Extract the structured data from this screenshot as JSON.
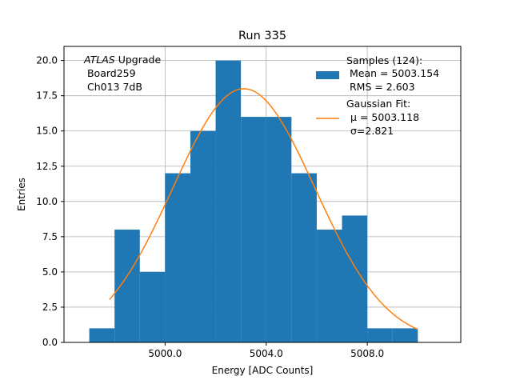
{
  "chart_data": {
    "type": "bar",
    "title": "Run 335",
    "xlabel": "Energy [ADC Counts]",
    "ylabel": "Entries",
    "xlim": [
      4996.0,
      5011.7
    ],
    "ylim": [
      0,
      21.0
    ],
    "grid": true,
    "x_ticks": [
      5000.0,
      5004.0,
      5008.0
    ],
    "x_tick_labels": [
      "5000.0",
      "5004.0",
      "5008.0"
    ],
    "y_ticks": [
      0.0,
      2.5,
      5.0,
      7.5,
      10.0,
      12.5,
      15.0,
      17.5,
      20.0
    ],
    "y_tick_labels": [
      "0.0",
      "2.5",
      "5.0",
      "7.5",
      "10.0",
      "12.5",
      "15.0",
      "17.5",
      "20.0"
    ],
    "bins": [
      {
        "x0": 4997,
        "x1": 4998,
        "value": 1
      },
      {
        "x0": 4998,
        "x1": 4999,
        "value": 8
      },
      {
        "x0": 4999,
        "x1": 5000,
        "value": 5
      },
      {
        "x0": 5000,
        "x1": 5001,
        "value": 12
      },
      {
        "x0": 5001,
        "x1": 5002,
        "value": 15
      },
      {
        "x0": 5002,
        "x1": 5003,
        "value": 20
      },
      {
        "x0": 5003,
        "x1": 5004,
        "value": 16
      },
      {
        "x0": 5004,
        "x1": 5005,
        "value": 16
      },
      {
        "x0": 5005,
        "x1": 5006,
        "value": 12
      },
      {
        "x0": 5006,
        "x1": 5007,
        "value": 8
      },
      {
        "x0": 5007,
        "x1": 5008,
        "value": 9
      },
      {
        "x0": 5008,
        "x1": 5009,
        "value": 1
      },
      {
        "x0": 5009,
        "x1": 5010,
        "value": 1
      }
    ],
    "fit": {
      "type": "gaussian",
      "mu": 5003.118,
      "sigma": 2.821,
      "amplitude": 18.0,
      "x_range": [
        4997.8,
        5010.0
      ]
    },
    "colors": {
      "bars": "#1f77b4",
      "fit": "#ff7f0e",
      "grid": "#b0b0b0"
    },
    "annotation": {
      "line1_italic": "ATLAS",
      "line1_rest": " Upgrade",
      "line2": " Board259",
      "line3": " Ch013 7dB"
    },
    "legend": {
      "position": "upper right",
      "samples_lines": [
        "Samples (124):",
        " Mean = 5003.154",
        " RMS = 2.603"
      ],
      "fit_lines": [
        "Gaussian Fit:",
        "μ = 5003.118",
        "σ=2.821"
      ]
    }
  }
}
